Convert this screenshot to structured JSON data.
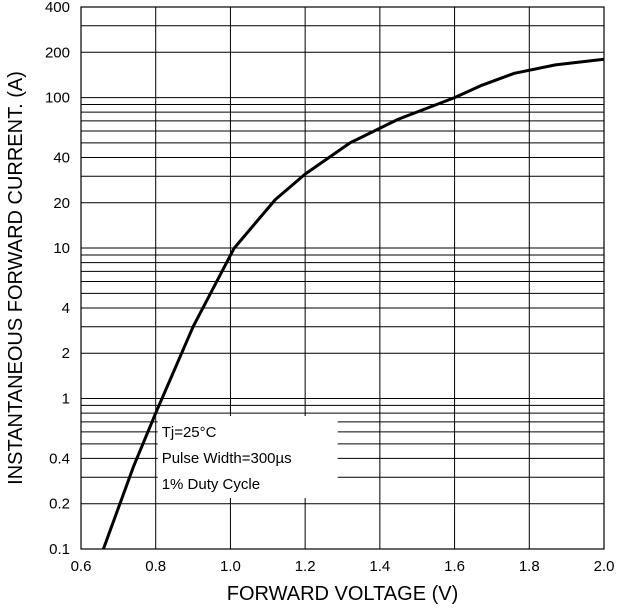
{
  "chart_data": {
    "type": "line",
    "xlabel": "FORWARD VOLTAGE (V)",
    "ylabel": "INSTANTANEOUS FORWARD CURRENT. (A)",
    "x_scale": "linear",
    "y_scale": "log",
    "xlim": [
      0.6,
      2.0
    ],
    "ylim": [
      0.1,
      400
    ],
    "x_ticks": [
      "0.6",
      "0.8",
      "1.0",
      "1.2",
      "1.4",
      "1.6",
      "1.8",
      "2.0"
    ],
    "y_ticks": [
      {
        "label": "400",
        "value": 400
      },
      {
        "label": "200",
        "value": 200
      },
      {
        "label": "100",
        "value": 100
      },
      {
        "label": "40",
        "value": 40
      },
      {
        "label": "20",
        "value": 20
      },
      {
        "label": "10",
        "value": 10
      },
      {
        "label": "4",
        "value": 4
      },
      {
        "label": "2",
        "value": 2
      },
      {
        "label": "1",
        "value": 1
      },
      {
        "label": "0.4",
        "value": 0.4
      },
      {
        "label": "0.2",
        "value": 0.2
      },
      {
        "label": "0.1",
        "value": 0.1
      }
    ],
    "grid": true,
    "annotation_lines": [
      "Tj=25°C",
      "Pulse Width=300µs",
      "1% Duty Cycle"
    ],
    "series": [
      {
        "x": [
          0.66,
          0.74,
          0.8,
          0.9,
          1.01,
          1.12,
          1.2,
          1.32,
          1.45,
          1.6,
          1.67,
          1.76,
          1.87,
          2.0
        ],
        "y": [
          0.1,
          0.35,
          0.8,
          3.0,
          10,
          21,
          31,
          50,
          72,
          100,
          120,
          145,
          165,
          180
        ]
      }
    ]
  }
}
